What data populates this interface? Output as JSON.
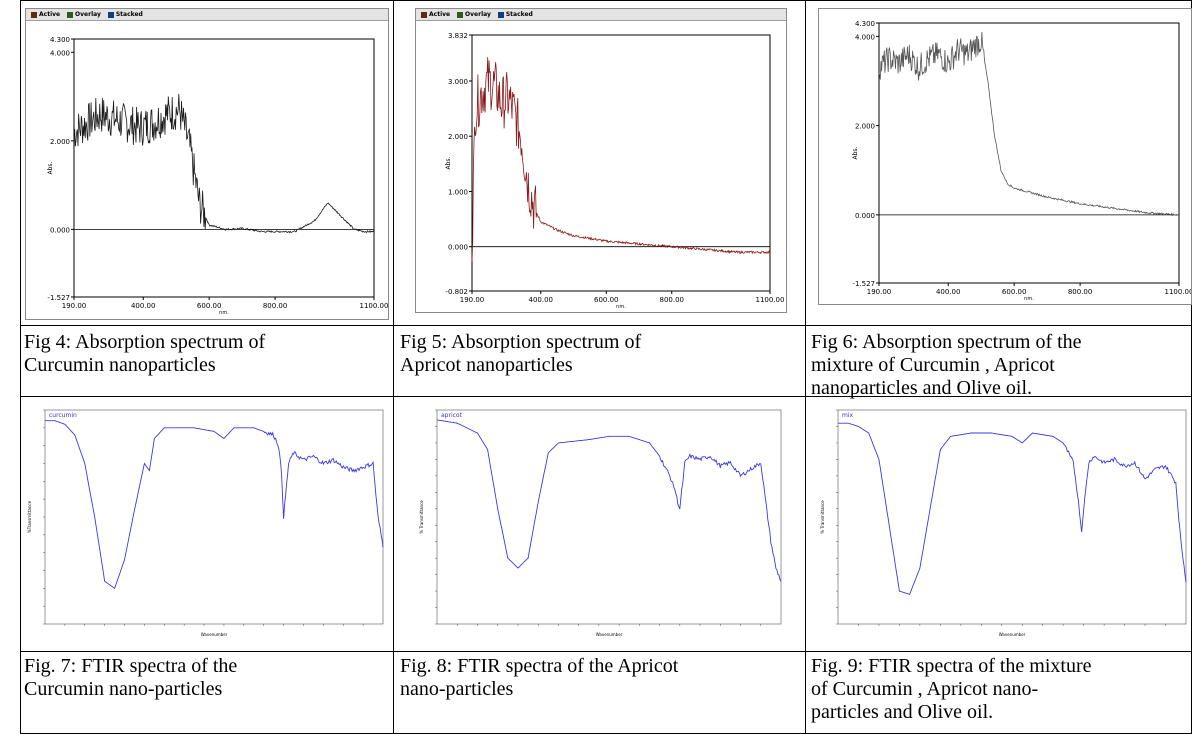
{
  "uv_toolbar": [
    "Active",
    "Overlay",
    "Stacked"
  ],
  "captions": {
    "fig4": [
      "Fig 4: Absorption spectrum of",
      "Curcumin nanoparticles"
    ],
    "fig5": [
      "Fig 5: Absorption spectrum of",
      "Apricot nanoparticles"
    ],
    "fig6": [
      "Fig 6: Absorption spectrum of the",
      "mixture of Curcumin , Apricot",
      "nanoparticles and Olive oil."
    ],
    "fig7": [
      "Fig. 7: FTIR spectra of the",
      "Curcumin nano-particles"
    ],
    "fig8": [
      "Fig. 8: FTIR spectra of the Apricot",
      "nano-particles"
    ],
    "fig9": [
      "Fig. 9: FTIR spectra of the mixture",
      "of Curcumin , Apricot nano-",
      "particles and Olive oil."
    ]
  },
  "colors": {
    "uv_curcumin": "#1a1a1a",
    "uv_apricot": "#8b1a1a",
    "uv_mix": "#555555",
    "ftir": "#3a3ae0",
    "ftir_label": "#b03060"
  },
  "chart_data": [
    {
      "type": "line",
      "ylabel": "Abs.",
      "xlabel": "nm.",
      "xlim": [
        190,
        1100
      ],
      "ylim": [
        -1.527,
        4.3
      ],
      "yticks": [
        "4.300",
        "4.000",
        "2.000",
        "0.000",
        "-1.527"
      ],
      "xticks": [
        "190.00",
        "400.00",
        "600.00",
        "800.00",
        "1100.00"
      ],
      "series": [
        {
          "x": [
            190,
            230,
            270,
            310,
            350,
            390,
            430,
            470,
            510,
            540,
            570,
            600,
            650,
            700,
            760,
            800,
            860,
            920,
            960,
            1000,
            1040,
            1070,
            1100
          ],
          "y": [
            2.2,
            2.4,
            2.6,
            2.5,
            2.4,
            2.3,
            2.4,
            2.6,
            2.7,
            1.9,
            0.6,
            0.1,
            0.0,
            0.02,
            -0.05,
            -0.05,
            -0.05,
            0.2,
            0.6,
            0.3,
            0.0,
            -0.05,
            -0.05
          ]
        }
      ]
    },
    {
      "type": "line",
      "ylabel": "Abs.",
      "xlabel": "nm.",
      "xlim": [
        190,
        1100
      ],
      "ylim": [
        -0.802,
        3.832
      ],
      "yticks": [
        "3.832",
        "3.000",
        "2.000",
        "1.000",
        "0.000",
        "-0.802"
      ],
      "xticks": [
        "190.00",
        "400.00",
        "600.00",
        "800.00",
        "1100.00"
      ],
      "series": [
        {
          "x": [
            190,
            200,
            220,
            240,
            260,
            280,
            300,
            320,
            340,
            360,
            380,
            400,
            450,
            500,
            600,
            700,
            800,
            900,
            1000,
            1100
          ],
          "y": [
            0.1,
            2.5,
            2.8,
            3.0,
            2.9,
            2.6,
            2.7,
            2.4,
            2.0,
            1.2,
            0.7,
            0.45,
            0.3,
            0.2,
            0.1,
            0.05,
            0.0,
            -0.05,
            -0.1,
            -0.1
          ]
        }
      ]
    },
    {
      "type": "line",
      "ylabel": "Abs.",
      "xlabel": "nm.",
      "xlim": [
        190,
        1100
      ],
      "ylim": [
        -1.527,
        4.3
      ],
      "yticks": [
        "4.300",
        "4.000",
        "2.000",
        "0.000",
        "-1.527"
      ],
      "xticks": [
        "190.00",
        "400.00",
        "600.00",
        "800.00",
        "1100.00"
      ],
      "series": [
        {
          "x": [
            190,
            220,
            250,
            280,
            310,
            340,
            370,
            400,
            430,
            460,
            480,
            500,
            520,
            540,
            560,
            580,
            600,
            650,
            700,
            800,
            900,
            1000,
            1100
          ],
          "y": [
            3.3,
            3.5,
            3.4,
            3.6,
            3.3,
            3.5,
            3.6,
            3.4,
            3.7,
            3.6,
            3.8,
            3.9,
            3.0,
            1.8,
            1.0,
            0.7,
            0.6,
            0.5,
            0.4,
            0.25,
            0.15,
            0.05,
            0.0
          ]
        }
      ]
    },
    {
      "type": "line",
      "title": "curcumin",
      "ylabel": "%Transmittance",
      "xlabel": "Wavenumber",
      "xlim": [
        4000,
        600
      ],
      "ylim": [
        40,
        100
      ],
      "series": [
        {
          "x": [
            4000,
            3900,
            3800,
            3700,
            3600,
            3500,
            3400,
            3300,
            3200,
            3100,
            3000,
            2950,
            2900,
            2800,
            2500,
            2300,
            2200,
            2100,
            1900,
            1800,
            1700,
            1650,
            1620,
            1600,
            1550,
            1500,
            1400,
            1300,
            1200,
            1100,
            1000,
            900,
            800,
            700,
            650,
            600
          ],
          "y": [
            97,
            97,
            96,
            93,
            85,
            70,
            52,
            50,
            58,
            72,
            85,
            83,
            92,
            95,
            95,
            94,
            92,
            95,
            95,
            94,
            93,
            90,
            82,
            70,
            85,
            88,
            86,
            87,
            85,
            86,
            84,
            83,
            84,
            85,
            70,
            62
          ]
        }
      ]
    },
    {
      "type": "line",
      "title": "apricot",
      "ylabel": "% Transmittance",
      "xlabel": "Wavenumber",
      "xlim": [
        4000,
        600
      ],
      "ylim": [
        35,
        100
      ],
      "series": [
        {
          "x": [
            4000,
            3800,
            3600,
            3500,
            3400,
            3300,
            3200,
            3100,
            3000,
            2900,
            2800,
            2500,
            2300,
            2200,
            2100,
            1900,
            1800,
            1700,
            1650,
            1620,
            1600,
            1550,
            1500,
            1400,
            1300,
            1200,
            1100,
            1000,
            900,
            800,
            700,
            650,
            600
          ],
          "y": [
            97,
            96,
            93,
            88,
            70,
            55,
            52,
            55,
            72,
            87,
            90,
            91,
            92,
            92,
            92,
            90,
            86,
            80,
            76,
            72,
            70,
            84,
            86,
            85,
            86,
            83,
            84,
            80,
            82,
            84,
            60,
            52,
            48
          ]
        }
      ]
    },
    {
      "type": "line",
      "title": "mix",
      "ylabel": "% Transmittance",
      "xlabel": "Wavenumber",
      "xlim": [
        4000,
        600
      ],
      "ylim": [
        35,
        100
      ],
      "series": [
        {
          "x": [
            4000,
            3900,
            3800,
            3700,
            3600,
            3500,
            3400,
            3300,
            3200,
            3100,
            3000,
            2900,
            2700,
            2500,
            2300,
            2200,
            2100,
            1900,
            1800,
            1700,
            1650,
            1620,
            1600,
            1550,
            1500,
            1400,
            1300,
            1200,
            1100,
            1000,
            900,
            800,
            700,
            650,
            600
          ],
          "y": [
            96,
            96,
            95,
            93,
            85,
            65,
            45,
            44,
            52,
            70,
            88,
            92,
            93,
            93,
            92,
            90,
            93,
            92,
            90,
            84,
            72,
            63,
            70,
            84,
            86,
            84,
            85,
            83,
            84,
            79,
            82,
            83,
            78,
            60,
            48
          ]
        }
      ]
    }
  ]
}
